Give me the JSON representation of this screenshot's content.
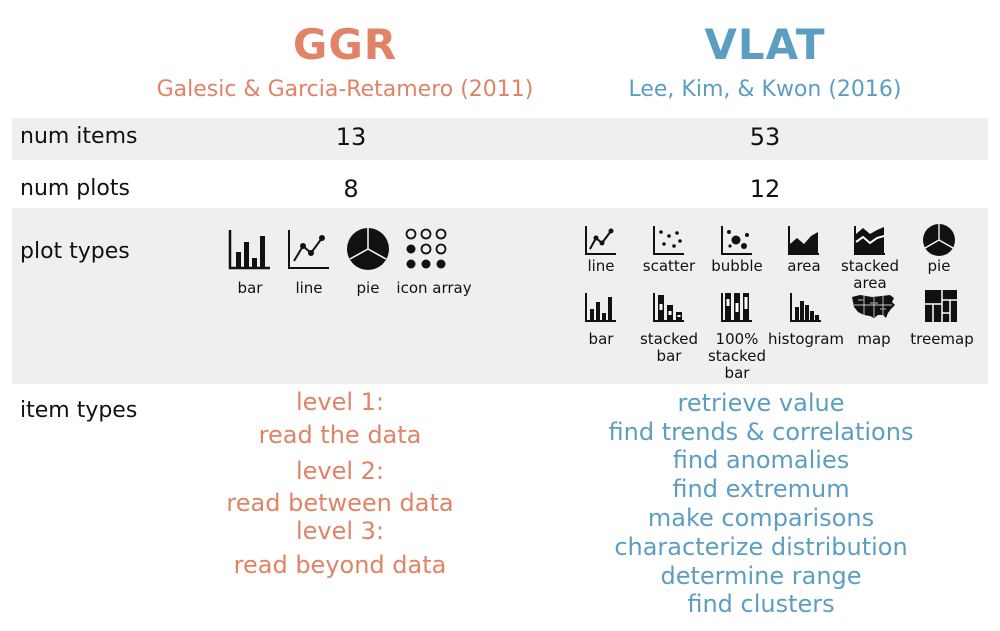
{
  "colors": {
    "ggr": "#e08366",
    "vlat": "#5c9ec2",
    "band": "#efefef"
  },
  "ggr": {
    "title": "GGR",
    "citation": "Galesic & Garcia-Retamero (2011)",
    "num_items": "13",
    "num_plots": "8",
    "plot_types": [
      {
        "icon": "bar-chart-icon",
        "label": "bar"
      },
      {
        "icon": "line-chart-icon",
        "label": "line"
      },
      {
        "icon": "pie-chart-icon",
        "label": "pie"
      },
      {
        "icon": "icon-array-icon",
        "label": "icon array"
      }
    ],
    "item_types": [
      "level 1:",
      "read the data",
      "level 2:",
      "read between data",
      "level 3:",
      "read beyond data"
    ]
  },
  "vlat": {
    "title": "VLAT",
    "citation": "Lee, Kim, & Kwon (2016)",
    "num_items": "53",
    "num_plots": "12",
    "plot_types": [
      {
        "icon": "line-chart-icon",
        "label": "line"
      },
      {
        "icon": "scatter-plot-icon",
        "label": "scatter"
      },
      {
        "icon": "bubble-chart-icon",
        "label": "bubble"
      },
      {
        "icon": "area-chart-icon",
        "label": "area"
      },
      {
        "icon": "stacked-area-icon",
        "label": "stacked area"
      },
      {
        "icon": "pie-chart-icon",
        "label": "pie"
      },
      {
        "icon": "bar-chart-icon",
        "label": "bar"
      },
      {
        "icon": "stacked-bar-icon",
        "label": "stacked bar"
      },
      {
        "icon": "100-stacked-bar-icon",
        "label": "100% stacked bar"
      },
      {
        "icon": "histogram-icon",
        "label": "histogram"
      },
      {
        "icon": "map-icon",
        "label": "map"
      },
      {
        "icon": "treemap-icon",
        "label": "treemap"
      }
    ],
    "item_types": [
      "retrieve value",
      "find trends & correlations",
      "find  anomalies",
      "find extremum",
      "make comparisons",
      "characterize distribution",
      "determine range",
      "find clusters"
    ]
  },
  "rows": {
    "num_items": "num items",
    "num_plots": "num plots",
    "plot_types": "plot types",
    "item_types": "item types"
  }
}
